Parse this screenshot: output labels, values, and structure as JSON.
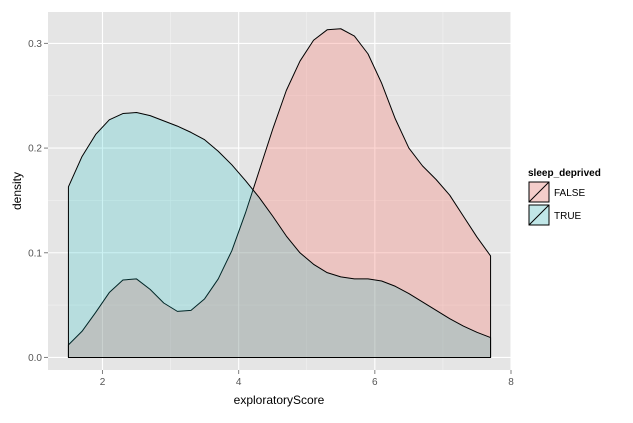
{
  "chart_data": {
    "type": "area",
    "subtype": "density",
    "title": "",
    "xlabel": "exploratoryScore",
    "ylabel": "density",
    "xlim": [
      1.2,
      8.0
    ],
    "ylim": [
      -0.012,
      0.33
    ],
    "x_ticks": [
      2,
      4,
      6,
      8
    ],
    "y_ticks": [
      0.0,
      0.1,
      0.2,
      0.3
    ],
    "y_tick_labels": [
      "0.0",
      "0.1",
      "0.2",
      "0.3"
    ],
    "grid": true,
    "panel_background": "#e5e5e5",
    "legend": {
      "title": "sleep_deprived",
      "position": "right"
    },
    "series": [
      {
        "name": "FALSE",
        "color": "#f8766d",
        "fill_opacity": 0.3,
        "x": [
          1.5,
          1.7,
          1.9,
          2.1,
          2.3,
          2.5,
          2.7,
          2.9,
          3.1,
          3.3,
          3.5,
          3.7,
          3.9,
          4.1,
          4.3,
          4.5,
          4.7,
          4.9,
          5.1,
          5.3,
          5.5,
          5.7,
          5.9,
          6.1,
          6.3,
          6.5,
          6.7,
          6.9,
          7.1,
          7.3,
          7.5,
          7.7
        ],
        "values": [
          0.012,
          0.025,
          0.043,
          0.062,
          0.074,
          0.075,
          0.065,
          0.052,
          0.044,
          0.045,
          0.056,
          0.075,
          0.102,
          0.138,
          0.178,
          0.218,
          0.255,
          0.283,
          0.303,
          0.313,
          0.314,
          0.307,
          0.29,
          0.262,
          0.228,
          0.2,
          0.183,
          0.17,
          0.155,
          0.135,
          0.115,
          0.097
        ]
      },
      {
        "name": "TRUE",
        "color": "#00bfc4",
        "fill_opacity": 0.2,
        "x": [
          1.5,
          1.7,
          1.9,
          2.1,
          2.3,
          2.5,
          2.7,
          2.9,
          3.1,
          3.3,
          3.5,
          3.7,
          3.9,
          4.1,
          4.3,
          4.5,
          4.7,
          4.9,
          5.1,
          5.3,
          5.5,
          5.7,
          5.9,
          6.1,
          6.3,
          6.5,
          6.7,
          6.9,
          7.1,
          7.3,
          7.5,
          7.7
        ],
        "values": [
          0.163,
          0.192,
          0.213,
          0.227,
          0.233,
          0.234,
          0.231,
          0.226,
          0.221,
          0.215,
          0.208,
          0.197,
          0.184,
          0.169,
          0.153,
          0.135,
          0.116,
          0.1,
          0.089,
          0.081,
          0.077,
          0.075,
          0.075,
          0.073,
          0.068,
          0.061,
          0.053,
          0.045,
          0.037,
          0.03,
          0.024,
          0.019
        ]
      }
    ]
  }
}
